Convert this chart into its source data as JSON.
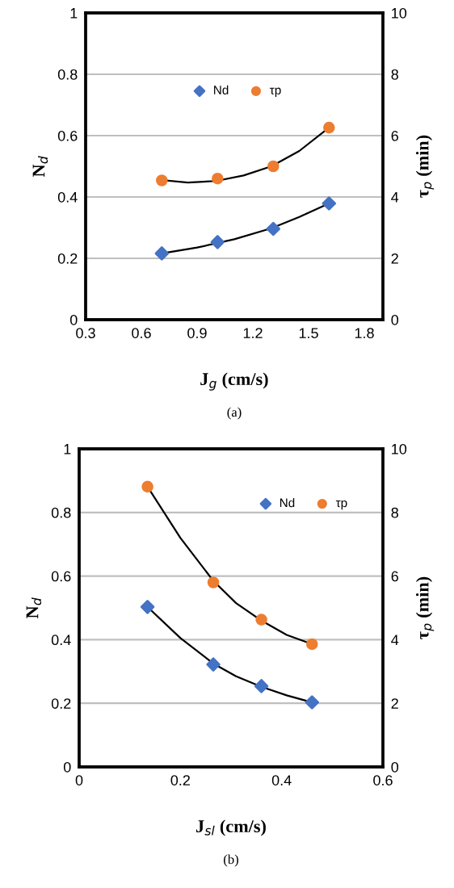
{
  "chart_data": [
    {
      "type": "scatter",
      "xlabel": "J$_{g}$ (cm/s)",
      "ylabel": "N$_{d}$",
      "y2label": "τ$_{p}$ (min)",
      "annotations": [
        "(a)"
      ],
      "xlim": [
        0.3,
        1.9
      ],
      "xticks": [
        0.3,
        0.6,
        0.9,
        1.2,
        1.5,
        1.8
      ],
      "ylim": [
        0,
        1
      ],
      "yticks": [
        0,
        0.2,
        0.4,
        0.6,
        0.8,
        1
      ],
      "y2lim": [
        0,
        10
      ],
      "y2ticks": [
        0,
        2,
        4,
        6,
        8,
        10
      ],
      "grid": "y",
      "legend": "top",
      "series": [
        {
          "name": "Nd",
          "marker": "diamond",
          "color": "#4472c4",
          "x": [
            0.71,
            1.01,
            1.31,
            1.61
          ],
          "values": [
            0.216,
            0.253,
            0.296,
            0.379
          ]
        },
        {
          "name": "τp",
          "marker": "circle",
          "color": "#ed7d31",
          "axis": "y2",
          "x": [
            0.71,
            1.01,
            1.31,
            1.61
          ],
          "values": [
            4.54,
            4.6,
            5.0,
            6.26
          ]
        },
        {
          "type": "line",
          "color": "#000000",
          "x": [
            0.71,
            0.9,
            1.1,
            1.3,
            1.45,
            1.61
          ],
          "values": [
            0.216,
            0.235,
            0.262,
            0.298,
            0.335,
            0.379
          ]
        },
        {
          "type": "line",
          "color": "#000000",
          "axis": "y2",
          "x": [
            0.71,
            0.85,
            1.0,
            1.15,
            1.3,
            1.45,
            1.61
          ],
          "values": [
            4.55,
            4.47,
            4.52,
            4.7,
            5.0,
            5.5,
            6.26
          ]
        }
      ]
    },
    {
      "type": "scatter",
      "xlabel": "J$_{sl}$ (cm/s)",
      "ylabel": "N$_{d}$",
      "y2label": "τ$_{p}$ (min)",
      "annotations": [
        "(b)"
      ],
      "xlim": [
        0,
        0.6
      ],
      "xticks": [
        0,
        0.2,
        0.4,
        0.6
      ],
      "ylim": [
        0,
        1
      ],
      "yticks": [
        0,
        0.2,
        0.4,
        0.6,
        0.8,
        1
      ],
      "y2lim": [
        0,
        10
      ],
      "y2ticks": [
        0,
        2,
        4,
        6,
        8,
        10
      ],
      "grid": "y",
      "legend": "top right",
      "series": [
        {
          "name": "Nd",
          "marker": "diamond",
          "color": "#4472c4",
          "x": [
            0.135,
            0.265,
            0.36,
            0.46
          ],
          "values": [
            0.503,
            0.322,
            0.254,
            0.203
          ]
        },
        {
          "name": "τp",
          "marker": "circle",
          "color": "#ed7d31",
          "axis": "y2",
          "x": [
            0.135,
            0.265,
            0.36,
            0.46
          ],
          "values": [
            8.81,
            5.8,
            4.63,
            3.86
          ]
        },
        {
          "type": "line",
          "color": "#000000",
          "x": [
            0.135,
            0.2,
            0.265,
            0.31,
            0.36,
            0.41,
            0.46
          ],
          "values": [
            0.503,
            0.405,
            0.325,
            0.285,
            0.252,
            0.225,
            0.203
          ]
        },
        {
          "type": "line",
          "color": "#000000",
          "axis": "y2",
          "x": [
            0.135,
            0.2,
            0.265,
            0.31,
            0.36,
            0.41,
            0.46
          ],
          "values": [
            8.81,
            7.2,
            5.85,
            5.15,
            4.6,
            4.15,
            3.86
          ]
        }
      ]
    }
  ]
}
